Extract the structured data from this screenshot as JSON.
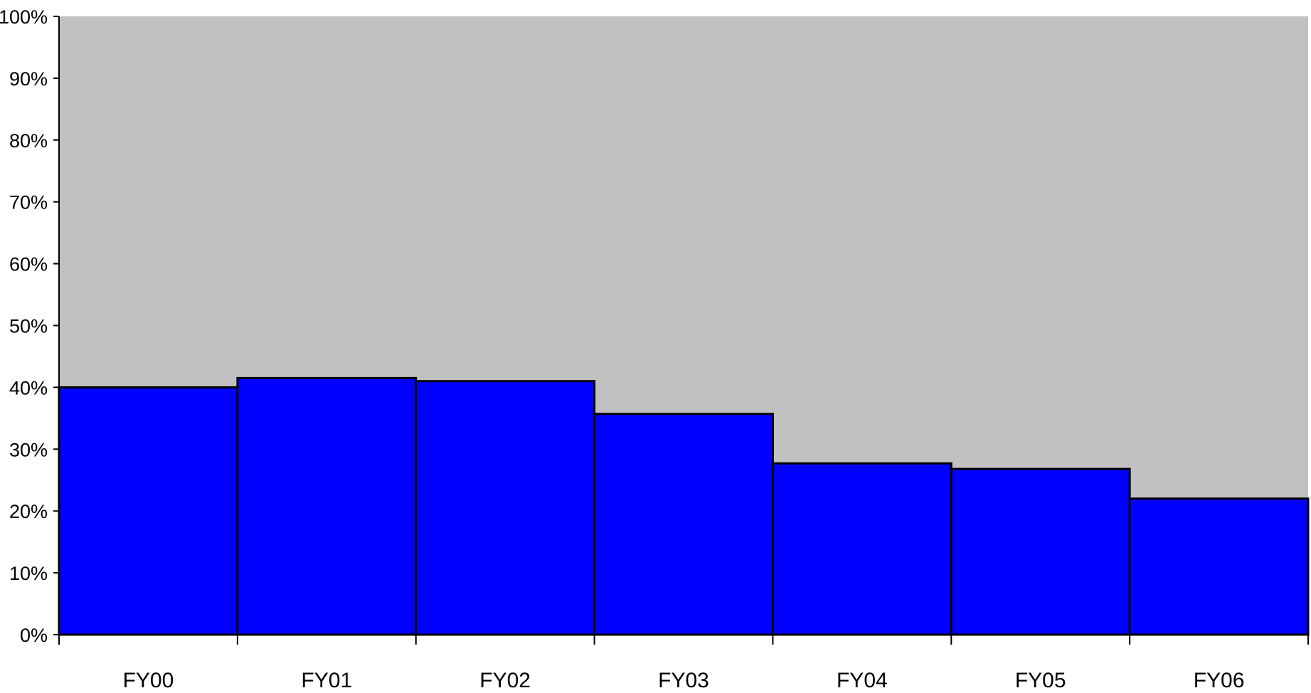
{
  "chart_data": {
    "type": "bar",
    "title": "",
    "xlabel": "",
    "ylabel": "",
    "categories": [
      "FY00",
      "FY01",
      "FY02",
      "FY03",
      "FY04",
      "FY05",
      "FY06"
    ],
    "series": [
      {
        "values": [
          40,
          41.5,
          41,
          35.7,
          27.7,
          26.8,
          22
        ]
      }
    ],
    "ylim": [
      0,
      100
    ],
    "yticks": [
      0,
      10,
      20,
      30,
      40,
      50,
      60,
      70,
      80,
      90,
      100
    ],
    "ytick_labels": [
      "0%",
      "10%",
      "20%",
      "30%",
      "40%",
      "50%",
      "60%",
      "70%",
      "80%",
      "90%",
      "100%"
    ],
    "grid": false,
    "legend": "none",
    "bar_gap": 0,
    "colors": {
      "bar_fill": "#0000ff",
      "bar_stroke": "#000000",
      "plot_background": "#c0c0c0",
      "axis": "#000000"
    }
  }
}
